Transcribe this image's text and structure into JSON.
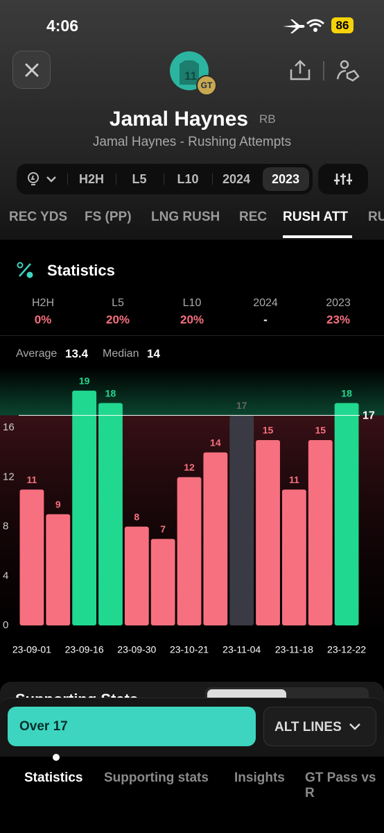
{
  "status_bar": {
    "time": "4:06",
    "battery": "86"
  },
  "header": {
    "player_number": "11",
    "team_badge": "GT",
    "name": "Jamal Haynes",
    "position": "RB",
    "subtitle": "Jamal Haynes - Rushing Attempts"
  },
  "filters": [
    "H2H",
    "L5",
    "L10",
    "2024",
    "2023"
  ],
  "stat_tabs": [
    "REC YDS",
    "FS (PP)",
    "LNG RUSH",
    "REC",
    "RUSH ATT",
    "RU"
  ],
  "statistics": {
    "title": "Statistics",
    "hit_rates": [
      {
        "label": "H2H",
        "value": "0%"
      },
      {
        "label": "L5",
        "value": "20%"
      },
      {
        "label": "L10",
        "value": "20%"
      },
      {
        "label": "2024",
        "value": "-"
      },
      {
        "label": "2023",
        "value": "23%"
      }
    ],
    "average_label": "Average",
    "average": 13.4,
    "median_label": "Median",
    "median": 14
  },
  "chart_data": {
    "type": "bar",
    "categories": [
      "23-09-01",
      null,
      "23-09-16",
      null,
      "23-09-30",
      null,
      "23-10-21",
      null,
      "23-11-04",
      null,
      "23-11-18",
      null,
      "23-12-22"
    ],
    "values": [
      11,
      9,
      19,
      18,
      8,
      7,
      12,
      14,
      17,
      15,
      11,
      15,
      18
    ],
    "colors": [
      "#f7707f",
      "#f7707f",
      "#20d88f",
      "#20d88f",
      "#f7707f",
      "#f7707f",
      "#f7707f",
      "#f7707f",
      "#3a3a44",
      "#f7707f",
      "#f7707f",
      "#f7707f",
      "#20d88f"
    ],
    "line": 17,
    "ylim": [
      0,
      20
    ],
    "yticks": [
      0,
      4,
      8,
      12,
      16
    ]
  },
  "supporting_stats_title": "Supporting Stats",
  "footer": {
    "over_button": "Over 17",
    "alt_lines": "ALT LINES",
    "tabs": [
      "Statistics",
      "Supporting stats",
      "Insights",
      "GT Pass vs R"
    ]
  }
}
